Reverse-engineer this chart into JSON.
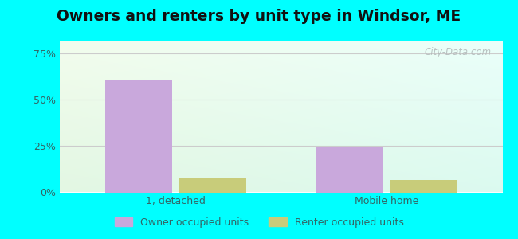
{
  "title": "Owners and renters by unit type in Windsor, ME",
  "title_fontsize": 13.5,
  "title_fontweight": "bold",
  "categories": [
    "1, detached",
    "Mobile home"
  ],
  "owner_values": [
    0.605,
    0.245
  ],
  "renter_values": [
    0.075,
    0.065
  ],
  "owner_color": "#c9a8dc",
  "renter_color": "#c8cc7a",
  "yticks": [
    0.0,
    0.25,
    0.5,
    0.75
  ],
  "ytick_labels": [
    "0%",
    "25%",
    "50%",
    "75%"
  ],
  "ylim": [
    0,
    0.82
  ],
  "background_color": "#00ffff",
  "grid_color": "#cccccc",
  "text_color": "#336666",
  "legend_owner": "Owner occupied units",
  "legend_renter": "Renter occupied units",
  "watermark": "City-Data.com",
  "bar_width": 0.32,
  "group_positions": [
    0.0,
    1.0
  ],
  "xlim": [
    -0.55,
    1.55
  ]
}
